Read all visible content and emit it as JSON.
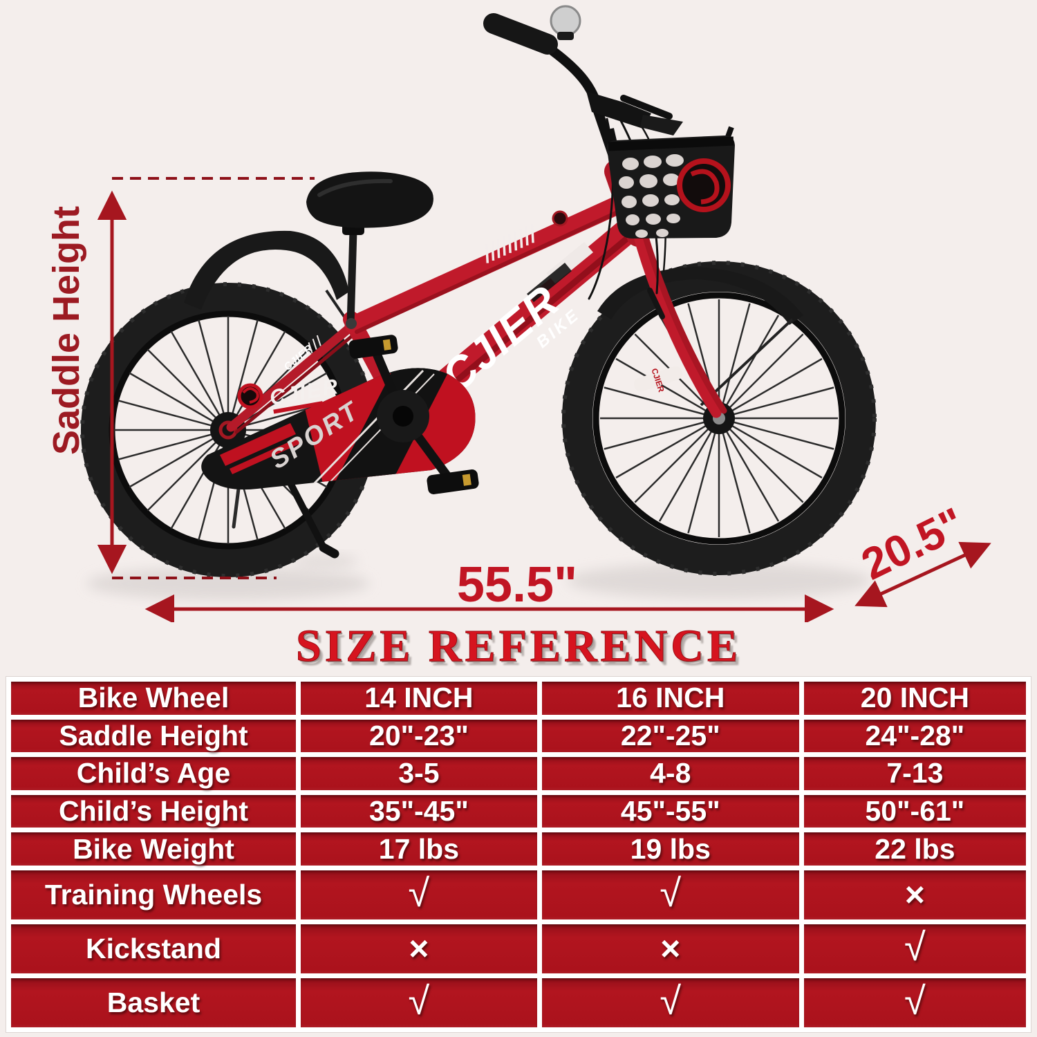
{
  "title": "SIZE REFERENCE",
  "diagram": {
    "saddle_height_label": "Saddle Height",
    "length_value": "55.5\"",
    "depth_value": "20.5\"",
    "frame_decal": "CJIER",
    "frame_decal_sub": "BIKE",
    "guard_brand": "CJIER",
    "guard_sport": "SPORT",
    "fork_decal": "CJIER",
    "stay_decal": "CJIER"
  },
  "colors": {
    "background": "#f4eeec",
    "arrow_red": "#a6161f",
    "label_red": "#9c1a22",
    "value_red": "#c11523",
    "title_red": "#d6141f",
    "table_cell_red": "#aa121c",
    "frame_red": "#c01a2b"
  },
  "chart_data": {
    "type": "table",
    "columns": [
      "Bike Wheel",
      "14 INCH",
      "16 INCH",
      "20 INCH"
    ],
    "rows": [
      [
        "Saddle Height",
        "20\"-23\"",
        "22\"-25\"",
        "24\"-28\""
      ],
      [
        "Child’s Age",
        "3-5",
        "4-8",
        "7-13"
      ],
      [
        "Child’s Height",
        "35\"-45\"",
        "45\"-55\"",
        "50\"-61\""
      ],
      [
        "Bike Weight",
        "17 lbs",
        "19 lbs",
        "22 lbs"
      ],
      [
        "Training Wheels",
        "√",
        "√",
        "×"
      ],
      [
        "Kickstand",
        "×",
        "×",
        "√"
      ],
      [
        "Basket",
        "√",
        "√",
        "√"
      ]
    ]
  }
}
